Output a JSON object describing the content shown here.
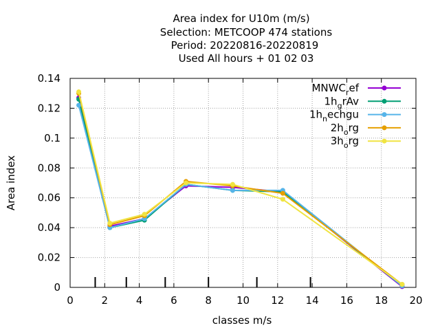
{
  "chart_data": {
    "type": "line",
    "title_lines": [
      "Area index  for U10m (m/s)",
      "Selection: METCOOP    474 stations",
      "Period: 20220816-20220819",
      "Used  All hours  + 01 02 03"
    ],
    "xlabel": "classes m/s",
    "ylabel": "Area index",
    "xlim": [
      0,
      20
    ],
    "ylim": [
      0,
      0.14
    ],
    "x_ticks": [
      "0",
      "2",
      "4",
      "6",
      "8",
      "10",
      "12",
      "14",
      "16",
      "18",
      "20"
    ],
    "y_ticks": [
      "0",
      "0.02",
      "0.04",
      "0.06",
      "0.08",
      "0.1",
      "0.12",
      "0.14"
    ],
    "grid": true,
    "legend_position": "top-right",
    "class_boundaries": [
      1.45,
      3.25,
      5.5,
      8.0,
      10.8,
      13.9
    ],
    "x": [
      0.5,
      2.3,
      4.3,
      6.7,
      9.4,
      12.3,
      19.2
    ],
    "series": [
      {
        "name": "MNWC",
        "sub": "r",
        "suffix": "ef",
        "color": "#9400d3",
        "values": [
          0.127,
          0.041,
          0.046,
          0.068,
          0.067,
          0.064,
          0.0005
        ]
      },
      {
        "name": "1h",
        "sub": "g",
        "suffix": "rAv",
        "color": "#009e73",
        "values": [
          0.126,
          0.04,
          0.045,
          0.069,
          0.065,
          0.064,
          0.001
        ]
      },
      {
        "name": "1h",
        "sub": "n",
        "suffix": "echgu",
        "color": "#56b4e9",
        "values": [
          0.122,
          0.04,
          0.046,
          0.069,
          0.065,
          0.065,
          0.001
        ]
      },
      {
        "name": "2h",
        "sub": "o",
        "suffix": "rg",
        "color": "#e69f00",
        "values": [
          0.13,
          0.042,
          0.048,
          0.071,
          0.068,
          0.063,
          0.002
        ]
      },
      {
        "name": "3h",
        "sub": "o",
        "suffix": "rg",
        "color": "#f0e442",
        "values": [
          0.131,
          0.043,
          0.049,
          0.07,
          0.069,
          0.059,
          0.002
        ]
      }
    ]
  }
}
